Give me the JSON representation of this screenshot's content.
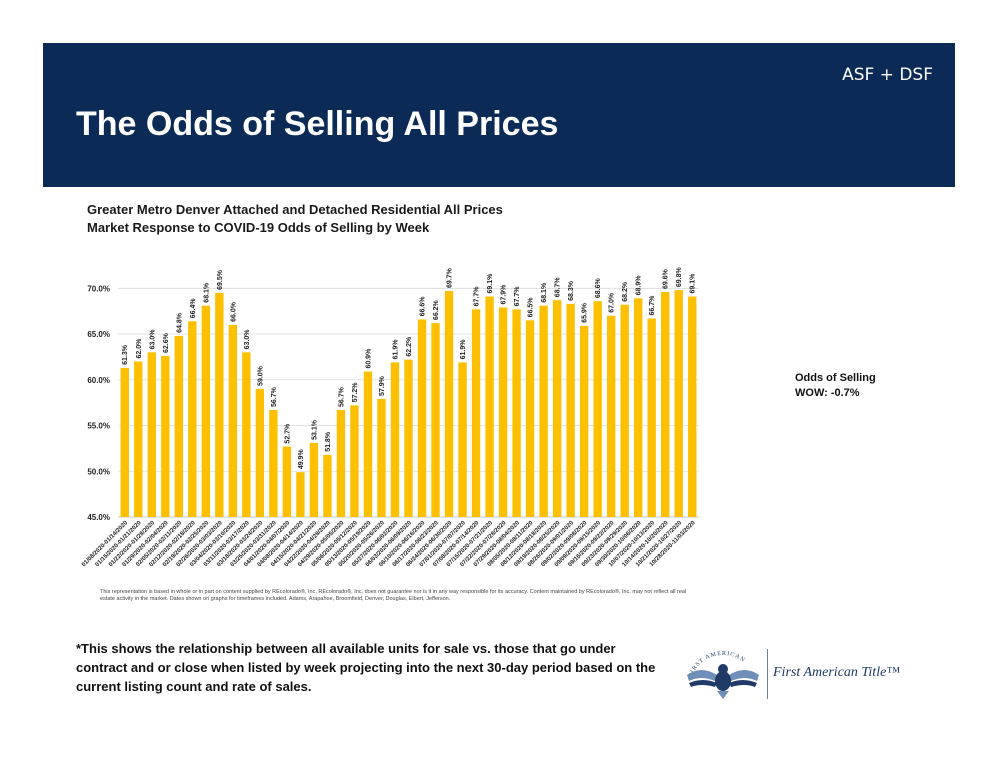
{
  "header": {
    "tag": "ASF + DSF",
    "title": "The Odds of Selling All Prices"
  },
  "chart_data": {
    "type": "bar",
    "title_line1": "Greater Metro Denver Attached and Detached Residential All Prices",
    "title_line2": "Market Response to COVID-19 Odds of Selling by Week",
    "ylim": [
      45,
      72
    ],
    "yticks": [
      45,
      50,
      55,
      60,
      65,
      70
    ],
    "ytick_labels": [
      "45.0%",
      "50.0%",
      "55.0%",
      "60.0%",
      "65.0%",
      "70.0%"
    ],
    "grid": true,
    "bar_color": "#fcc000",
    "categories": [
      "01/08/2020-01/14/2020",
      "01/15/2020-01/21/2020",
      "01/22/2020-01/28/2020",
      "01/29/2020-02/04/2020",
      "02/05/2020-02/11/2020",
      "02/12/2020-02/18/2020",
      "02/19/2020-02/25/2020",
      "02/26/2020-03/03/2020",
      "03/04/2020-03/10/2020",
      "03/11/2020-03/17/2020",
      "03/18/2020-03/24/2020",
      "03/25/2020-03/31/2020",
      "04/01/2020-04/07/2020",
      "04/08/2020-04/14/2020",
      "04/15/2020-04/21/2020",
      "04/22/2020-04/28/2020",
      "04/29/2020-05/05/2020",
      "05/06/2020-05/12/2020",
      "05/13/2020-05/19/2020",
      "05/20/2020-05/26/2020",
      "05/27/2020-06/02/2020",
      "06/03/2020-06/09/2020",
      "06/10/2020-06/16/2020",
      "06/17/2020-06/23/2020",
      "06/24/2020-06/30/2020",
      "07/01/2020-07/07/2020",
      "07/08/2020-07/14/2020",
      "07/15/2020-07/21/2020",
      "07/22/2020-07/28/2020",
      "07/29/2020-08/04/2020",
      "08/05/2020-08/11/2020",
      "08/12/2020-08/18/2020",
      "08/19/2020-08/25/2020",
      "08/26/2020-09/01/2020",
      "09/02/2020-09/08/2020",
      "09/09/2020-09/15/2020",
      "09/16/2020-09/22/2020",
      "09/23/2020-09/29/2020",
      "09/30/2020-10/06/2020",
      "10/07/2020-10/13/2020",
      "10/14/2020-10/20/2020",
      "10/21/2020-10/27/2020",
      "10/28/2020-11/03/2020"
    ],
    "values": [
      61.3,
      62.0,
      63.0,
      62.6,
      64.8,
      66.4,
      68.1,
      69.5,
      66.0,
      63.0,
      59.0,
      56.7,
      52.7,
      49.9,
      53.1,
      51.8,
      56.7,
      57.2,
      60.9,
      57.9,
      61.9,
      62.2,
      66.6,
      66.2,
      69.7,
      61.9,
      67.7,
      69.1,
      67.9,
      67.7,
      66.5,
      68.1,
      68.7,
      68.3,
      65.9,
      68.6,
      67.0,
      68.2,
      68.9,
      66.7,
      69.6,
      69.8,
      69.1
    ],
    "value_labels": [
      "61.3%",
      "62.0%",
      "63.0%",
      "62.6%",
      "64.8%",
      "66.4%",
      "68.1%",
      "69.5%",
      "66.0%",
      "63.0%",
      "59.0%",
      "56.7%",
      "52.7%",
      "49.9%",
      "53.1%",
      "51.8%",
      "56.7%",
      "57.2%",
      "60.9%",
      "57.9%",
      "61.9%",
      "62.2%",
      "66.6%",
      "66.2%",
      "69.7%",
      "61.9%",
      "67.7%",
      "69.1%",
      "67.9%",
      "67.7%",
      "66.5%",
      "68.1%",
      "68.7%",
      "68.3%",
      "65.9%",
      "68.6%",
      "67.0%",
      "68.2%",
      "68.9%",
      "66.7%",
      "69.6%",
      "69.8%",
      "69.1%"
    ]
  },
  "source_note": "This representation is based in whole or in part on content supplied by REcolorado®, Inc. REcolorado®, Inc. does not guarantee nor is it in any way responsible for its accuracy. Content maintained by REcolorado®, Inc. may not reflect all real estate activity in the market. Dates shown on graphs for timeframes included. Adams, Arapahoe, Broomfield, Denver, Douglas, Elbert, Jefferson.",
  "summary": {
    "label": "Odds of Selling",
    "wow": "WOW: -0.7%"
  },
  "footnote": "*This shows the relationship between all available units for sale vs. those that go under contract and or close when listed by week projecting into the next 30-day period based on the current listing count and rate of sales.",
  "logo": {
    "arc_text": "FIRST AMERICAN",
    "name": "First American Title™",
    "colors": {
      "navy": "#1f3a66",
      "light": "#6f8fb8"
    }
  }
}
